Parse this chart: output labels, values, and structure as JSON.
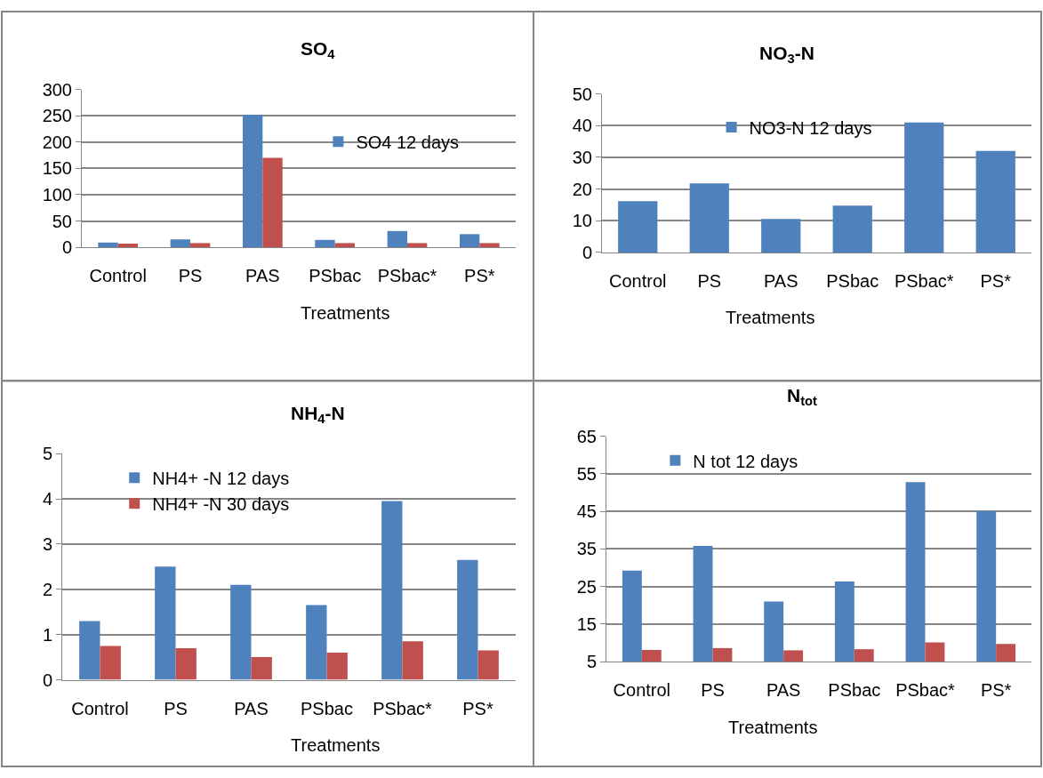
{
  "chart_data": [
    {
      "type": "bar",
      "title": "SO$_{4}$",
      "xlabel": "Treatments",
      "categories": [
        "Control",
        "PS",
        "PAS",
        "PSbac",
        "PSbac*",
        "PS*"
      ],
      "series": [
        {
          "name": "SO4 12 days",
          "color": "#4f81bd",
          "values": [
            9,
            15,
            252,
            14,
            31,
            25
          ]
        },
        {
          "color": "#c0504d",
          "values": [
            7,
            8,
            170,
            8,
            8,
            8
          ]
        }
      ],
      "ylim": [
        0,
        300
      ],
      "yticks": [
        0,
        50,
        100,
        150,
        200,
        250,
        300
      ],
      "grid": "y",
      "legend": "right"
    },
    {
      "type": "bar",
      "title": "NO$_{3}$-N",
      "xlabel": "Treatments",
      "categories": [
        "Control",
        "PS",
        "PAS",
        "PSbac",
        "PSbac*",
        "PS*"
      ],
      "series": [
        {
          "name": "NO3-N 12 days",
          "color": "#4f81bd",
          "values": [
            16.2,
            21.8,
            10.6,
            14.8,
            41,
            32
          ]
        }
      ],
      "ylim": [
        0,
        50
      ],
      "yticks": [
        0,
        10,
        20,
        30,
        40,
        50
      ],
      "grid": "y",
      "legend": "top"
    },
    {
      "type": "bar",
      "title": "NH$_{4}$-N",
      "xlabel": "Treatments",
      "categories": [
        "Control",
        "PS",
        "PAS",
        "PSbac",
        "PSbac*",
        "PS*"
      ],
      "series": [
        {
          "name": "NH4+ -N 12 days",
          "color": "#4f81bd",
          "values": [
            1.3,
            2.5,
            2.1,
            1.65,
            3.95,
            2.65
          ]
        },
        {
          "name": "NH4+ -N 30 days",
          "color": "#c0504d",
          "values": [
            0.75,
            0.7,
            0.5,
            0.6,
            0.85,
            0.65
          ]
        }
      ],
      "ylim": [
        0,
        5
      ],
      "yticks": [
        0,
        1,
        2,
        3,
        4,
        5
      ],
      "grid": "y",
      "legend": "top left"
    },
    {
      "type": "bar",
      "title": "N$_{tot}$",
      "xlabel": "Treatments",
      "categories": [
        "Control",
        "PS",
        "PAS",
        "PSbac",
        "PSbac*",
        "PS*"
      ],
      "series": [
        {
          "name": "N tot 12 days",
          "color": "#4f81bd",
          "values": [
            29.2,
            35.8,
            21,
            26.3,
            52.8,
            45.1
          ]
        },
        {
          "color": "#c0504d",
          "values": [
            8.1,
            8.6,
            8,
            8.3,
            10.1,
            9.7
          ]
        }
      ],
      "ylim": [
        5,
        65
      ],
      "yticks": [
        5,
        15,
        25,
        35,
        45,
        55,
        65
      ],
      "grid": "y",
      "legend": "top left"
    }
  ]
}
